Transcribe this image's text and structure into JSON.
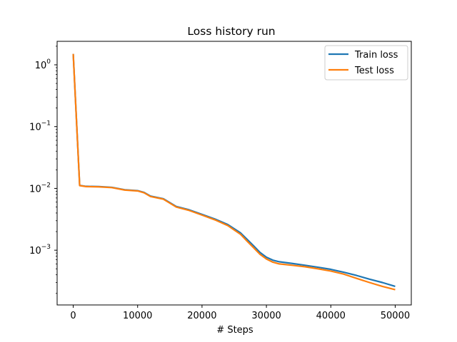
{
  "chart_data": {
    "type": "line",
    "title": "Loss history run",
    "xlabel": "# Steps",
    "ylabel": "",
    "yscale": "log",
    "xlim": [
      -2500,
      52500
    ],
    "ylim": [
      0.00013,
      2.4
    ],
    "x_ticks": [
      0,
      10000,
      20000,
      30000,
      40000,
      50000
    ],
    "x_tick_labels": [
      "0",
      "10000",
      "20000",
      "30000",
      "40000",
      "50000"
    ],
    "y_ticks": [
      0.001,
      0.01,
      0.1,
      1
    ],
    "y_tick_labels": [
      {
        "base": "10",
        "exp": "−3"
      },
      {
        "base": "10",
        "exp": "−2"
      },
      {
        "base": "10",
        "exp": "−1"
      },
      {
        "base": "10",
        "exp": "0"
      }
    ],
    "grid": false,
    "legend_position": "top-right",
    "series": [
      {
        "name": "Train loss",
        "color": "#1f77b4",
        "x": [
          0,
          1000,
          2000,
          4000,
          6000,
          8000,
          10000,
          11000,
          12000,
          14000,
          16000,
          18000,
          20000,
          22000,
          24000,
          26000,
          27000,
          28000,
          29000,
          30000,
          31000,
          32000,
          34000,
          36000,
          38000,
          40000,
          42000,
          44000,
          46000,
          48000,
          50000
        ],
        "values": [
          1.5,
          0.0112,
          0.0108,
          0.0107,
          0.0104,
          0.0095,
          0.0092,
          0.0086,
          0.0075,
          0.0068,
          0.0051,
          0.0045,
          0.0038,
          0.0032,
          0.0026,
          0.0019,
          0.0015,
          0.00118,
          0.00092,
          0.00077,
          0.00069,
          0.00065,
          0.00061,
          0.00057,
          0.00053,
          0.00049,
          0.00044,
          0.00039,
          0.00034,
          0.0003,
          0.00026
        ]
      },
      {
        "name": "Test loss",
        "color": "#ff7f0e",
        "x": [
          0,
          1000,
          2000,
          4000,
          6000,
          8000,
          10000,
          11000,
          12000,
          14000,
          16000,
          18000,
          20000,
          22000,
          24000,
          26000,
          27000,
          28000,
          29000,
          30000,
          31000,
          32000,
          34000,
          36000,
          38000,
          40000,
          42000,
          44000,
          46000,
          48000,
          50000
        ],
        "values": [
          1.5,
          0.0111,
          0.0107,
          0.0106,
          0.0103,
          0.0094,
          0.0091,
          0.0085,
          0.0074,
          0.0067,
          0.005,
          0.0044,
          0.0037,
          0.0031,
          0.0025,
          0.0018,
          0.0014,
          0.0011,
          0.00086,
          0.00072,
          0.00064,
          0.0006,
          0.00057,
          0.00054,
          0.0005,
          0.00046,
          0.00041,
          0.00035,
          0.0003,
          0.00026,
          0.00023
        ]
      }
    ]
  }
}
